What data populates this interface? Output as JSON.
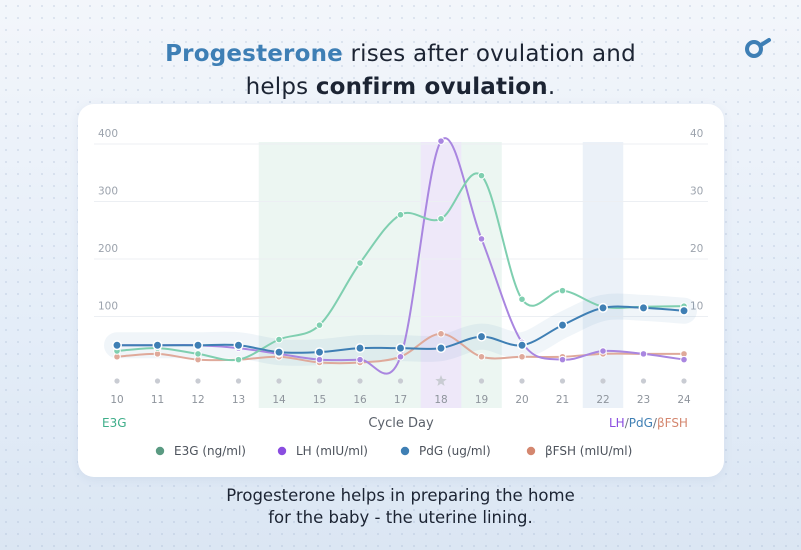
{
  "headline": {
    "part1_accent": "Progesterone",
    "part2": " rises after ovulation and",
    "part3": "helps ",
    "part4_bold": "confirm ovulation",
    "part5": "."
  },
  "caption": {
    "line1": "Progesterone helps in preparing the home",
    "line2": "for the baby - the uterine lining."
  },
  "logo_icon": "brand-logo-icon",
  "colors": {
    "e3g": "#7fcfb0",
    "lh": "#a986e0",
    "pdg": "#3f7fb4",
    "fsh": "#dfa99a",
    "accent": "#3e7fb5"
  },
  "chart_data": {
    "type": "line",
    "xlabel": "Cycle Day",
    "ylabel_left": "E3G",
    "ylabel_right_parts": [
      "LH",
      "/",
      "PdG",
      "/",
      "βFSH"
    ],
    "categories": [
      "10",
      "11",
      "12",
      "13",
      "14",
      "15",
      "16",
      "17",
      "18",
      "19",
      "20",
      "21",
      "22",
      "23",
      "24"
    ],
    "y_left": {
      "ylim": [
        0,
        400
      ],
      "ticks": [
        100,
        200,
        300,
        400
      ]
    },
    "y_right": {
      "ylim": [
        0,
        40
      ],
      "ticks": [
        10,
        20,
        30,
        40
      ]
    },
    "grid": true,
    "ovulation_day": "18",
    "ovulation_marker_icon": "star-icon",
    "highlight_bands": [
      {
        "from": "14",
        "to": "19",
        "color": "#e6f3ee"
      },
      {
        "from": "18",
        "to": "18",
        "color": "#efe3fb"
      },
      {
        "from": "22",
        "to": "22",
        "color": "#e4ecf6"
      }
    ],
    "series": [
      {
        "name": "E3G (ng/ml)",
        "color": "#7fcfb0",
        "axis": "left",
        "values": [
          40,
          45,
          35,
          25,
          60,
          85,
          193,
          277,
          270,
          345,
          130,
          145,
          117,
          117,
          118
        ]
      },
      {
        "name": "LH (mIU/ml)",
        "color": "#a986e0",
        "axis": "right",
        "values": [
          5,
          5,
          5,
          4.5,
          3.5,
          2.5,
          2.5,
          3,
          40.5,
          23.5,
          5.5,
          2.5,
          4,
          3.5,
          2.5
        ]
      },
      {
        "name": "PdG (ug/ml)",
        "color": "#3f7fb4",
        "axis": "right",
        "values": [
          5,
          5,
          5,
          5,
          3.8,
          3.8,
          4.5,
          4.5,
          4.5,
          6.5,
          5,
          8.5,
          11.5,
          11.5,
          11
        ]
      },
      {
        "name": "βFSH (mIU/ml)",
        "color": "#dfa99a",
        "axis": "right",
        "values": [
          3,
          3.5,
          2.5,
          2.5,
          3,
          2,
          2,
          3,
          7,
          3,
          3,
          3,
          3.5,
          3.5,
          3.5
        ]
      }
    ],
    "legend": {
      "placement": "bottom"
    }
  }
}
